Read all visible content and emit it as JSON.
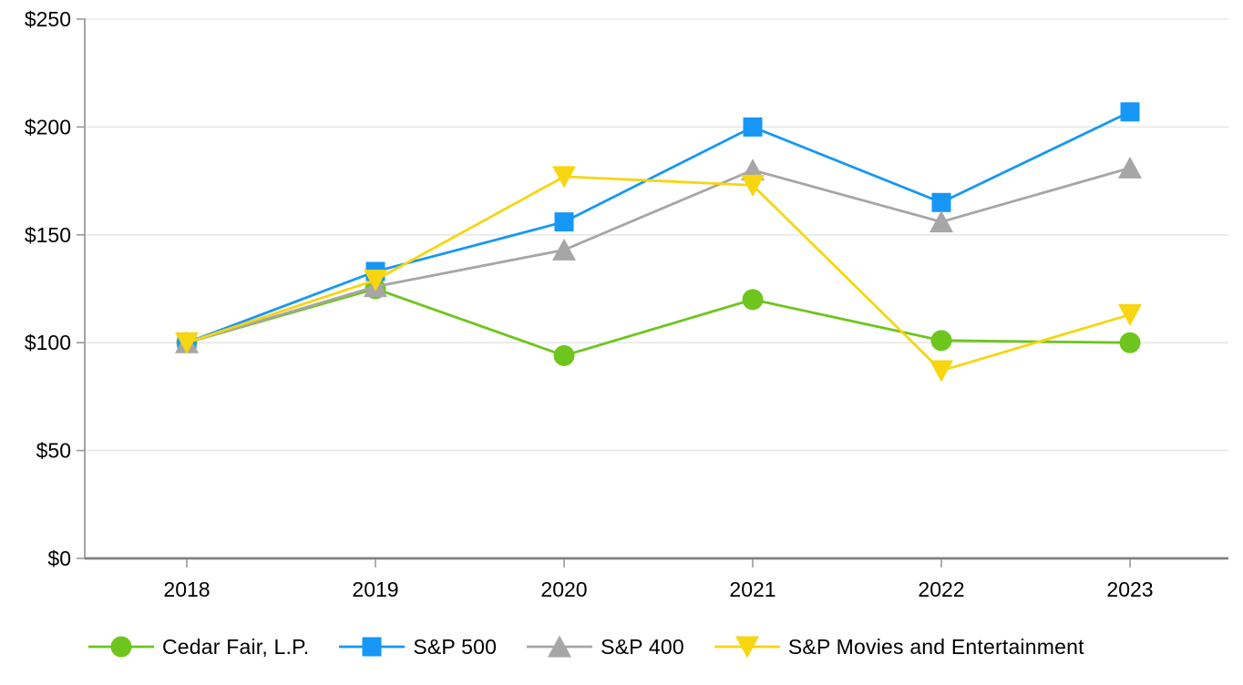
{
  "chart_data": {
    "type": "line",
    "title": "",
    "x": [
      "2018",
      "2019",
      "2020",
      "2021",
      "2022",
      "2023"
    ],
    "series": [
      {
        "name": "Cedar Fair, L.P.",
        "marker": "circle",
        "color": "#6EC51E",
        "values": [
          100,
          125,
          94,
          120,
          101,
          100
        ]
      },
      {
        "name": "S&P 500",
        "marker": "square",
        "color": "#1697F5",
        "values": [
          100,
          133,
          156,
          200,
          165,
          207
        ]
      },
      {
        "name": "S&P 400",
        "marker": "triangle-up",
        "color": "#A6A6A6",
        "values": [
          100,
          126,
          143,
          180,
          156,
          181
        ]
      },
      {
        "name": "S&P Movies and Entertainment",
        "marker": "triangle-down",
        "color": "#F7D511",
        "values": [
          100,
          129,
          177,
          173,
          87,
          113
        ]
      }
    ],
    "ylim": [
      0,
      250
    ],
    "ytick_values": [
      0,
      50,
      100,
      150,
      200,
      250
    ],
    "ytick_labels": [
      "$0",
      "$50",
      "$100",
      "$150",
      "$200",
      "$250"
    ],
    "xlabel": "",
    "ylabel": "",
    "grid": "horizontal",
    "legend_position": "bottom",
    "colors": {
      "gridline": "#E8E8E8",
      "y_axis": "#9B9B9B",
      "x_axis": "#808080",
      "tick": "#9B9B9B",
      "text": "#000000"
    }
  }
}
